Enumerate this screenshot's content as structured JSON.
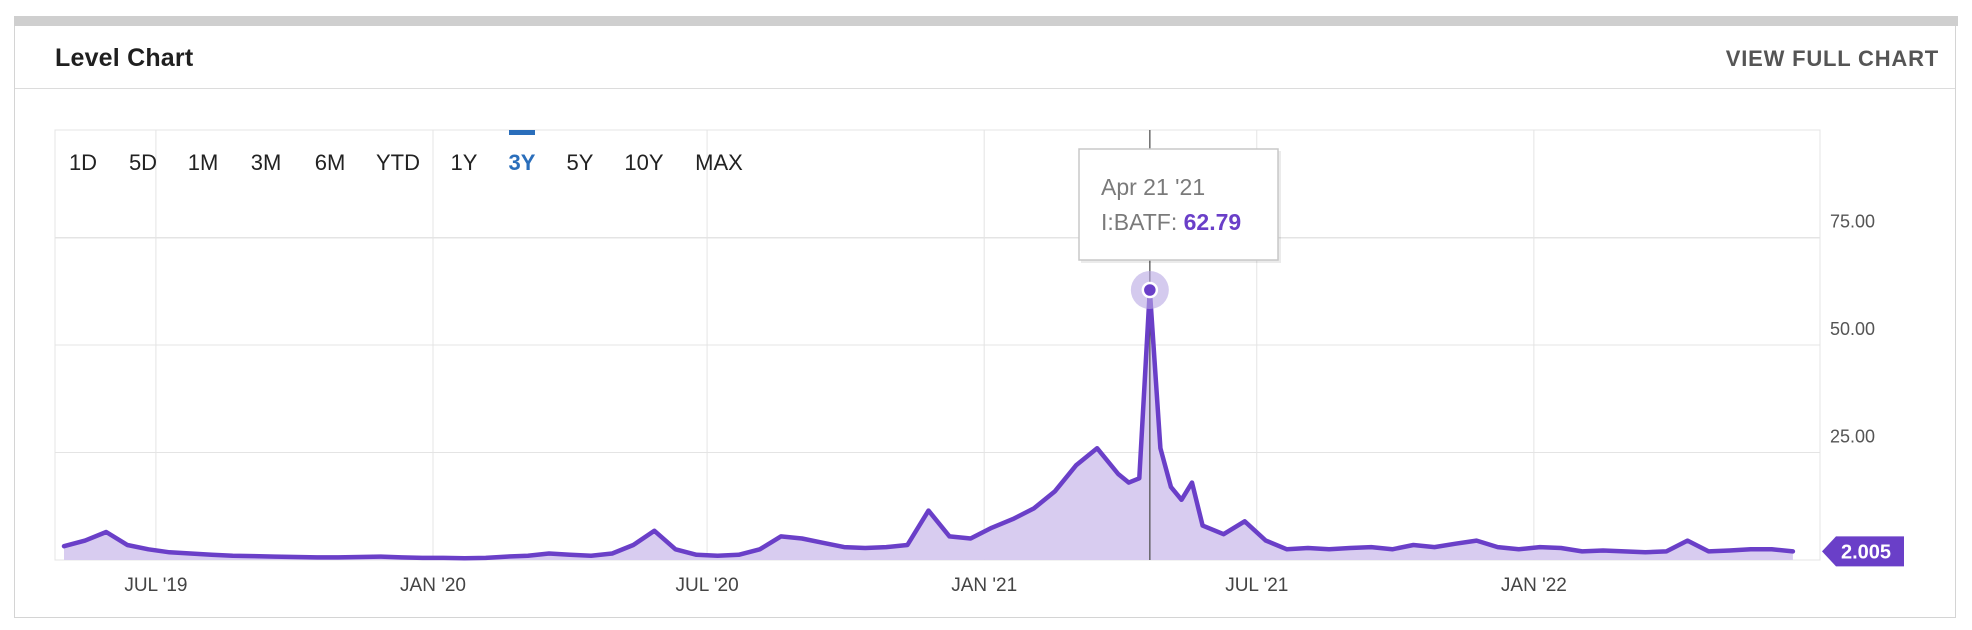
{
  "header": {
    "title": "Level Chart",
    "full_chart_label": "VIEW FULL CHART"
  },
  "ranges": {
    "items": [
      "1D",
      "5D",
      "1M",
      "3M",
      "6M",
      "YTD",
      "1Y",
      "3Y",
      "5Y",
      "10Y",
      "MAX"
    ],
    "active": "3Y"
  },
  "tooltip": {
    "date": "Apr 21 '21",
    "series_label": "I:BATF:",
    "value": "62.79"
  },
  "last_value_badge": "2.005",
  "colors": {
    "line": "#6a3fc8",
    "fill": "#d6c9ef",
    "accent": "#2a6ebb",
    "grid": "#e4e4e4"
  },
  "chart_data": {
    "type": "area",
    "series": [
      {
        "name": "I:BATF",
        "x": [
          "2019-05-01",
          "2019-05-15",
          "2019-05-29",
          "2019-06-12",
          "2019-06-26",
          "2019-07-10",
          "2019-07-24",
          "2019-08-07",
          "2019-08-21",
          "2019-09-04",
          "2019-09-18",
          "2019-10-02",
          "2019-10-16",
          "2019-10-30",
          "2019-11-13",
          "2019-11-27",
          "2019-12-11",
          "2019-12-25",
          "2020-01-08",
          "2020-01-22",
          "2020-02-05",
          "2020-02-19",
          "2020-03-04",
          "2020-03-18",
          "2020-04-01",
          "2020-04-15",
          "2020-04-29",
          "2020-05-13",
          "2020-05-27",
          "2020-06-10",
          "2020-06-24",
          "2020-07-08",
          "2020-07-22",
          "2020-08-05",
          "2020-08-19",
          "2020-09-02",
          "2020-09-16",
          "2020-09-30",
          "2020-10-14",
          "2020-10-28",
          "2020-11-11",
          "2020-11-25",
          "2020-12-09",
          "2020-12-23",
          "2021-01-06",
          "2021-01-20",
          "2021-02-03",
          "2021-02-17",
          "2021-03-03",
          "2021-03-17",
          "2021-03-31",
          "2021-04-07",
          "2021-04-14",
          "2021-04-21",
          "2021-04-28",
          "2021-05-05",
          "2021-05-12",
          "2021-05-19",
          "2021-05-26",
          "2021-06-09",
          "2021-06-23",
          "2021-07-07",
          "2021-07-21",
          "2021-08-04",
          "2021-08-18",
          "2021-09-01",
          "2021-09-15",
          "2021-09-29",
          "2021-10-13",
          "2021-10-27",
          "2021-11-10",
          "2021-11-24",
          "2021-12-08",
          "2021-12-22",
          "2022-01-05",
          "2022-01-19",
          "2022-02-02",
          "2022-02-16",
          "2022-03-02",
          "2022-03-16",
          "2022-03-30",
          "2022-04-13",
          "2022-04-27",
          "2022-05-11",
          "2022-05-25",
          "2022-06-08",
          "2022-06-22"
        ],
        "values": [
          3.2,
          4.5,
          6.5,
          3.5,
          2.5,
          1.8,
          1.5,
          1.2,
          1.0,
          0.9,
          0.8,
          0.7,
          0.6,
          0.6,
          0.7,
          0.8,
          0.6,
          0.5,
          0.5,
          0.4,
          0.5,
          0.8,
          1.0,
          1.5,
          1.2,
          1.0,
          1.5,
          3.5,
          6.8,
          2.5,
          1.2,
          1.0,
          1.2,
          2.5,
          5.5,
          5.0,
          4.0,
          3.0,
          2.8,
          3.0,
          3.5,
          11.5,
          5.5,
          5.0,
          7.5,
          9.5,
          12.0,
          16.0,
          22.0,
          26.0,
          20.0,
          18.0,
          19.0,
          62.79,
          26.0,
          17.0,
          14.0,
          18.0,
          8.0,
          6.0,
          9.0,
          4.5,
          2.5,
          2.8,
          2.5,
          2.8,
          3.0,
          2.5,
          3.5,
          3.0,
          3.8,
          4.5,
          3.0,
          2.5,
          3.0,
          2.8,
          2.0,
          2.2,
          2.0,
          1.8,
          2.0,
          4.5,
          2.0,
          2.2,
          2.5,
          2.5,
          2.005
        ]
      }
    ],
    "x_ticks": [
      {
        "date": "2019-07-01",
        "label": "JUL '19"
      },
      {
        "date": "2020-01-01",
        "label": "JAN '20"
      },
      {
        "date": "2020-07-01",
        "label": "JUL '20"
      },
      {
        "date": "2021-01-01",
        "label": "JAN '21"
      },
      {
        "date": "2021-07-01",
        "label": "JUL '21"
      },
      {
        "date": "2022-01-01",
        "label": "JAN '22"
      }
    ],
    "y_ticks": [
      25,
      50,
      75
    ],
    "y_tick_labels": [
      "25.00",
      "50.00",
      "75.00"
    ],
    "ylim": [
      0,
      100
    ],
    "xlim": [
      "2019-04-25",
      "2022-07-10"
    ],
    "grid": true,
    "highlight": {
      "x": "2021-04-21",
      "value": 62.79
    }
  }
}
